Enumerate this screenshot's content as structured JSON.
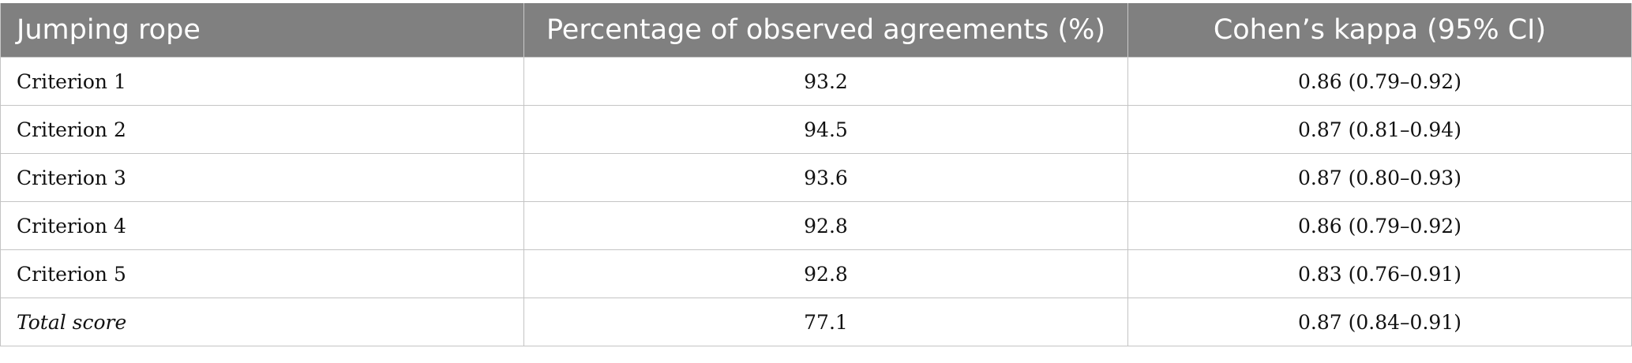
{
  "table": {
    "headers": [
      "Jumping rope",
      "Percentage of observed agreements (%)",
      "Cohen’s kappa (95% CI)"
    ],
    "rows": [
      {
        "label": "Criterion 1",
        "agreement": "93.2",
        "kappa": "0.86 (0.79–0.92)"
      },
      {
        "label": "Criterion 2",
        "agreement": "94.5",
        "kappa": "0.87 (0.81–0.94)"
      },
      {
        "label": "Criterion 3",
        "agreement": "93.6",
        "kappa": "0.87 (0.80–0.93)"
      },
      {
        "label": "Criterion 4",
        "agreement": "92.8",
        "kappa": "0.86 (0.79–0.92)"
      },
      {
        "label": "Criterion 5",
        "agreement": "92.8",
        "kappa": "0.83 (0.76–0.91)"
      },
      {
        "label": "Total score",
        "agreement": "77.1",
        "kappa": "0.87 (0.84–0.91)"
      }
    ]
  }
}
